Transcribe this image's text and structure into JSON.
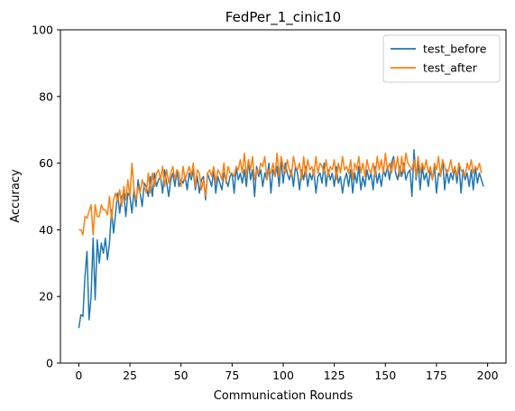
{
  "chart_data": {
    "type": "line",
    "title": "FedPer_1_cinic10",
    "xlabel": "Communication Rounds",
    "ylabel": "Accuracy",
    "xlim": [
      -9,
      209
    ],
    "ylim": [
      0,
      100
    ],
    "xticks": [
      0,
      25,
      50,
      75,
      100,
      125,
      150,
      175,
      200
    ],
    "yticks": [
      0,
      20,
      40,
      60,
      80,
      100
    ],
    "legend_position": "top-right",
    "grid": false,
    "series": [
      {
        "name": "test_before",
        "color": "#1f77b4",
        "values": [
          10.5,
          14.5,
          14,
          26,
          33.5,
          13,
          20,
          37.5,
          19,
          37,
          30,
          36,
          33,
          37.5,
          31,
          36,
          46,
          39,
          45,
          51,
          45,
          50,
          51,
          44,
          51,
          50,
          45,
          52,
          47,
          55,
          51,
          47,
          54,
          53,
          50,
          56,
          50,
          57,
          53,
          55,
          56,
          51,
          58,
          54,
          50,
          55,
          57,
          53,
          58,
          53,
          55,
          54,
          56,
          52,
          57,
          55,
          58,
          52,
          56,
          51,
          55,
          56,
          49,
          57,
          55,
          53,
          58,
          51,
          56,
          54,
          52,
          57,
          55,
          53,
          56,
          57,
          51,
          59,
          55,
          57,
          54,
          58,
          53,
          61,
          55,
          58,
          50,
          59,
          56,
          58,
          53,
          57,
          55,
          60,
          51,
          58,
          56,
          59,
          53,
          61,
          54,
          60,
          57,
          55,
          58,
          53,
          59,
          57,
          52,
          58,
          55,
          59,
          53,
          57,
          55,
          58,
          51,
          56,
          57,
          54,
          60,
          53,
          58,
          55,
          57,
          53,
          59,
          54,
          56,
          51,
          55,
          57,
          53,
          58,
          51,
          57,
          54,
          59,
          52,
          56,
          53,
          58,
          55,
          57,
          52,
          59,
          54,
          57,
          53,
          58,
          56,
          59,
          55,
          60,
          62,
          57,
          55,
          59,
          56,
          60,
          55,
          57,
          58,
          50,
          64,
          55,
          60,
          52,
          59,
          55,
          57,
          53,
          58,
          55,
          59,
          51,
          57,
          56,
          61,
          52,
          58,
          54,
          57,
          55,
          59,
          54,
          60,
          51,
          58,
          55,
          57,
          53,
          58,
          52,
          59,
          54,
          57,
          55,
          53
        ]
      },
      {
        "name": "test_after",
        "color": "#ff7f0e",
        "values": [
          40,
          40,
          38.5,
          44,
          43.5,
          45.5,
          47.5,
          38.5,
          47.5,
          44,
          44,
          47.5,
          46,
          46,
          44.5,
          50,
          43,
          49,
          51,
          48.5,
          52,
          47,
          53,
          49,
          55,
          50,
          60,
          52,
          49,
          53,
          51,
          55,
          53,
          51,
          57,
          51,
          57,
          53,
          57,
          58,
          55,
          59,
          53,
          58,
          54,
          57,
          59,
          55,
          58,
          57,
          53,
          59,
          55,
          57,
          59,
          56,
          60,
          53,
          58,
          57,
          52,
          55,
          50,
          57,
          58,
          56,
          59,
          54,
          58,
          57,
          55,
          60,
          54,
          59,
          57,
          57,
          56,
          59,
          58,
          61,
          57,
          63,
          56,
          61,
          58,
          62,
          55,
          58,
          57,
          60,
          59,
          62,
          55,
          58,
          57,
          60,
          56,
          63,
          56,
          62,
          59,
          57,
          61,
          58,
          56,
          62,
          59,
          58,
          60,
          55,
          62,
          56,
          61,
          58,
          59,
          56,
          62,
          57,
          60,
          59,
          57,
          61,
          56,
          59,
          58,
          61,
          55,
          60,
          57,
          62,
          58,
          59,
          57,
          61,
          55,
          60,
          58,
          62,
          57,
          60,
          56,
          61,
          58,
          57,
          60,
          56,
          62,
          58,
          61,
          57,
          63,
          58,
          60,
          57,
          61,
          58,
          62,
          56,
          62,
          57,
          63,
          60,
          59,
          58,
          61,
          56,
          62,
          57,
          60,
          58,
          61,
          57,
          59,
          55,
          60,
          58,
          62,
          56,
          61,
          59,
          57,
          58,
          61,
          57,
          59,
          56,
          60,
          58,
          57,
          56,
          60,
          58,
          61,
          57,
          59,
          58,
          60,
          57
        ]
      }
    ]
  }
}
